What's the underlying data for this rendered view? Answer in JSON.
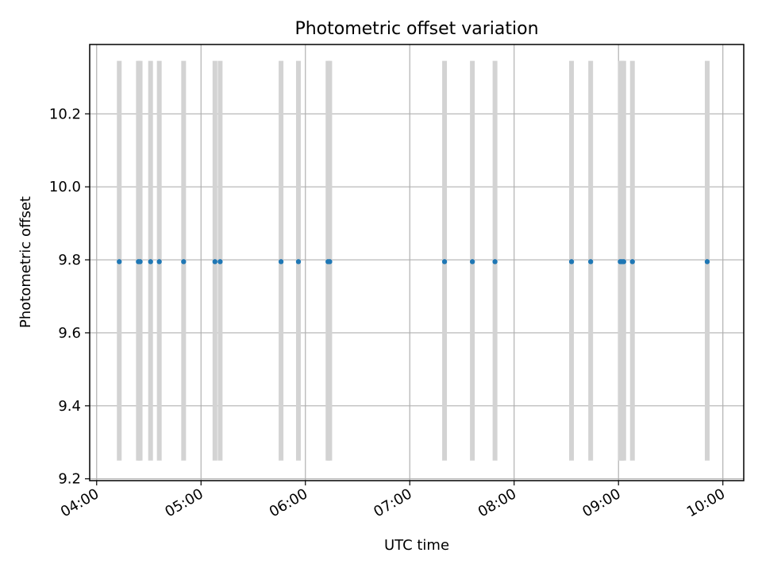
{
  "chart_data": {
    "type": "scatter",
    "title": "Photometric offset variation",
    "xlabel": "UTC time",
    "ylabel": "Photometric offset",
    "xlim": [
      "03:56",
      "10:12"
    ],
    "ylim": [
      9.195,
      10.39
    ],
    "x_ticks": [
      "04:00",
      "05:00",
      "06:00",
      "07:00",
      "08:00",
      "09:00",
      "10:00"
    ],
    "y_ticks": [
      "9.2",
      "9.4",
      "9.6",
      "9.8",
      "10.0",
      "10.2"
    ],
    "grid": true,
    "legend": "none",
    "colors": {
      "points": "#1f77b4",
      "error_bars": "#d3d3d3",
      "grid": "#b0b0b0"
    },
    "series": [
      {
        "x": [
          "04:13",
          "04:24",
          "04:25",
          "04:31",
          "04:36",
          "04:50",
          "05:08",
          "05:11",
          "05:46",
          "05:56",
          "06:13",
          "06:14",
          "07:20",
          "07:36",
          "07:49",
          "08:33",
          "08:44",
          "09:01",
          "09:02",
          "09:03",
          "09:08",
          "09:51"
        ],
        "y": [
          9.795,
          9.795,
          9.795,
          9.795,
          9.795,
          9.795,
          9.795,
          9.795,
          9.795,
          9.795,
          9.795,
          9.795,
          9.795,
          9.795,
          9.795,
          9.795,
          9.795,
          9.795,
          9.795,
          9.795,
          9.795,
          9.795
        ],
        "err_low": [
          9.25,
          9.25,
          9.25,
          9.25,
          9.25,
          9.25,
          9.25,
          9.25,
          9.25,
          9.25,
          9.25,
          9.25,
          9.25,
          9.25,
          9.25,
          9.25,
          9.25,
          9.25,
          9.25,
          9.25,
          9.25,
          9.25
        ],
        "err_high": [
          10.345,
          10.345,
          10.345,
          10.345,
          10.345,
          10.345,
          10.345,
          10.345,
          10.345,
          10.345,
          10.345,
          10.345,
          10.345,
          10.345,
          10.345,
          10.345,
          10.345,
          10.345,
          10.345,
          10.345,
          10.345,
          10.345
        ]
      }
    ]
  }
}
